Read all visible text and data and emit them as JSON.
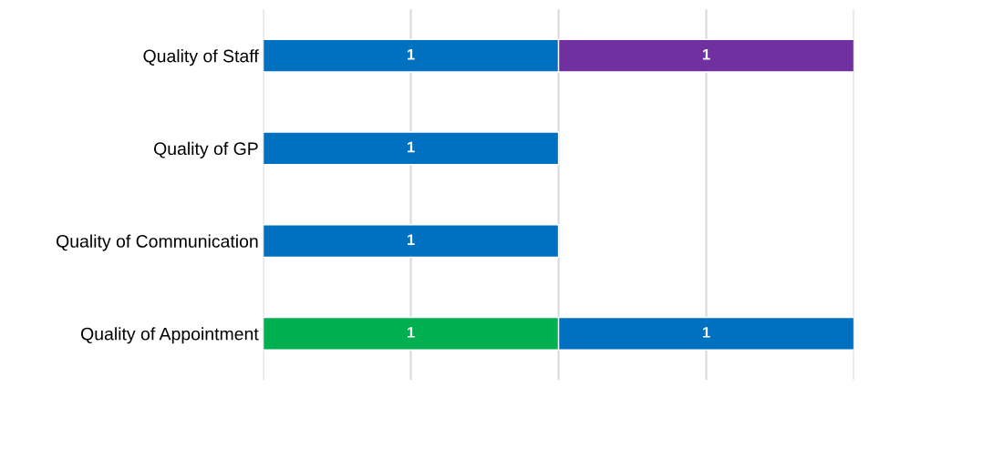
{
  "chart_data": {
    "type": "bar",
    "orientation": "horizontal",
    "stacked": true,
    "categories": [
      "Quality of Staff",
      "Quality of GP",
      "Quality of Communication",
      "Quality of Appointment"
    ],
    "series": [
      {
        "color": "#00b050",
        "values": [
          null,
          null,
          null,
          1
        ]
      },
      {
        "color": "#0070c0",
        "values": [
          1,
          1,
          1,
          1
        ]
      },
      {
        "color": "#7030a0",
        "values": [
          1,
          null,
          null,
          null
        ]
      }
    ],
    "xlim": [
      0,
      2
    ],
    "xticks": [
      {
        "value": 0,
        "label": null
      },
      {
        "value": 0.5,
        "label": null
      },
      {
        "value": 1,
        "label": null
      },
      {
        "value": 1.5,
        "label": null
      },
      {
        "value": 2,
        "label": null
      }
    ],
    "grid": "x",
    "data_labels": true,
    "tick_labels": "y"
  }
}
